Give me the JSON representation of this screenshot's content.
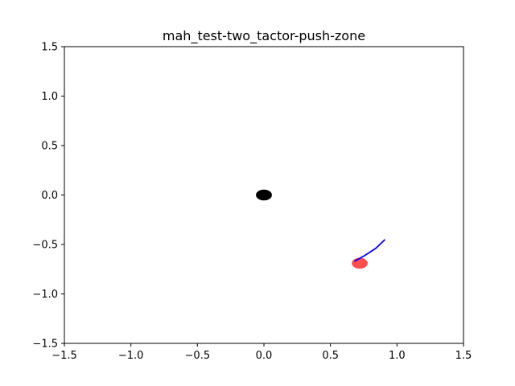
{
  "chart_data": {
    "type": "scatter",
    "title": "mah_test-two_tactor-push-zone",
    "xlabel": "",
    "ylabel": "",
    "xlim": [
      -1.5,
      1.5
    ],
    "ylim": [
      -1.5,
      1.5
    ],
    "grid": false,
    "x_ticks": [
      -1.5,
      -1.0,
      -0.5,
      0.0,
      0.5,
      1.0,
      1.5
    ],
    "x_tick_labels": [
      "−1.5",
      "−1.0",
      "−0.5",
      "0.0",
      "0.5",
      "1.0",
      "1.5"
    ],
    "y_ticks": [
      1.5,
      1.0,
      0.5,
      0.0,
      -0.5,
      -1.0,
      -1.5
    ],
    "y_tick_labels": [
      "1.5",
      "1.0",
      "0.5",
      "0.0",
      "−0.5",
      "−1.0",
      "−1.5"
    ],
    "objects": [
      {
        "shape": "ellipse",
        "cx": 0.0,
        "cy": 0.0,
        "rx": 0.06,
        "ry": 0.055,
        "color": "#000000",
        "opacity": 1.0
      },
      {
        "shape": "ellipse",
        "cx": 0.72,
        "cy": -0.69,
        "rx": 0.06,
        "ry": 0.055,
        "color": "#ff0000",
        "opacity": 0.7
      }
    ],
    "series": [
      {
        "color": "#0000ff",
        "x": [
          0.68,
          0.76,
          0.84,
          0.91
        ],
        "y": [
          -0.67,
          -0.61,
          -0.54,
          -0.45
        ]
      }
    ]
  }
}
